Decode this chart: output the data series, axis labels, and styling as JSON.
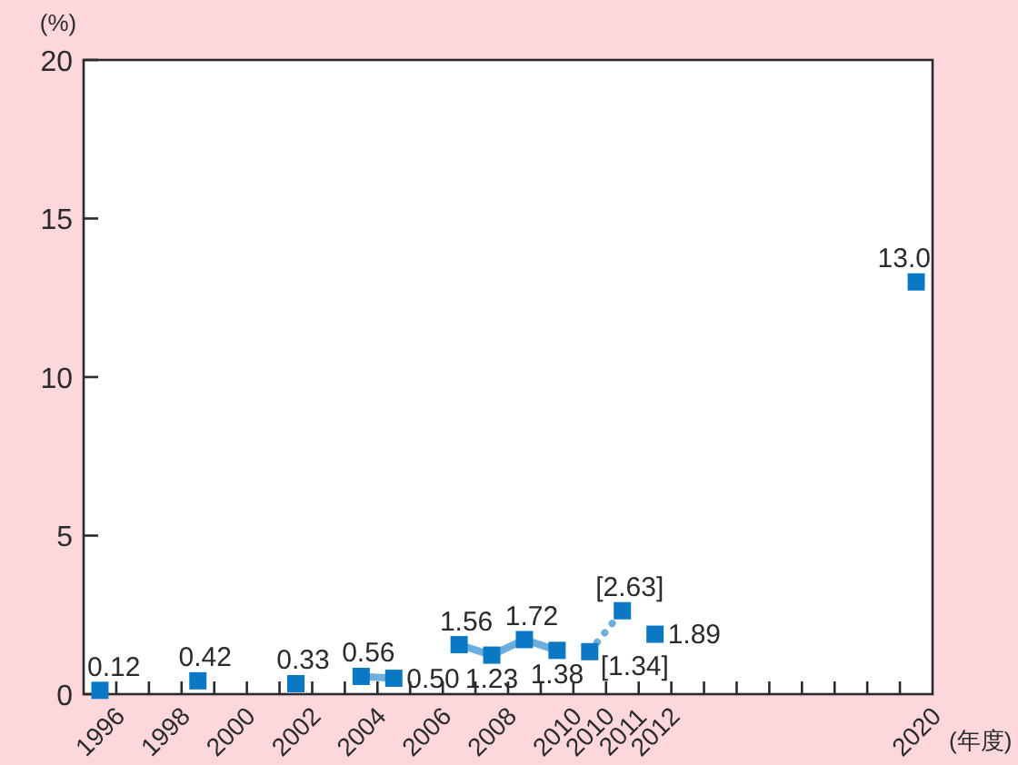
{
  "chart_data": {
    "type": "line",
    "ylabel": "(%)",
    "xlabel": "(年度)",
    "categories": [
      "1996",
      null,
      "1998",
      null,
      "2000",
      null,
      "2002",
      null,
      "2004",
      null,
      "2006",
      null,
      "2008",
      null,
      "2010",
      "2010",
      "2011",
      "2012",
      null,
      null,
      null,
      null,
      null,
      null,
      null,
      "2020"
    ],
    "ylim": [
      0,
      20
    ],
    "yticks": [
      0,
      5,
      10,
      15,
      20
    ],
    "marker": "square",
    "series": [
      {
        "color": "#0a78c4",
        "line_style": "solid",
        "values": [
          0.12,
          null,
          null,
          0.42,
          null,
          null,
          0.33,
          null,
          0.56,
          0.5,
          null,
          1.56,
          1.23,
          1.72,
          1.38,
          null,
          null,
          1.89,
          null,
          null,
          null,
          null,
          null,
          null,
          null,
          13.0
        ],
        "value_labels": [
          "0.12",
          null,
          null,
          "0.42",
          null,
          null,
          "0.33",
          null,
          "0.56",
          "0.50",
          null,
          "1.56",
          "1.23",
          "1.72",
          "1.38",
          null,
          null,
          "1.89",
          null,
          null,
          null,
          null,
          null,
          null,
          null,
          "13.0"
        ]
      },
      {
        "color": "#0a78c4",
        "line_style": "dotted",
        "values": [
          null,
          null,
          null,
          null,
          null,
          null,
          null,
          null,
          null,
          null,
          null,
          null,
          null,
          null,
          null,
          1.34,
          2.63,
          null,
          null,
          null,
          null,
          null,
          null,
          null,
          null,
          null
        ],
        "value_labels": [
          null,
          null,
          null,
          null,
          null,
          null,
          null,
          null,
          null,
          null,
          null,
          null,
          null,
          null,
          null,
          "[1.34]",
          "[2.63]",
          null,
          null,
          null,
          null,
          null,
          null,
          null,
          null,
          null
        ]
      }
    ]
  }
}
